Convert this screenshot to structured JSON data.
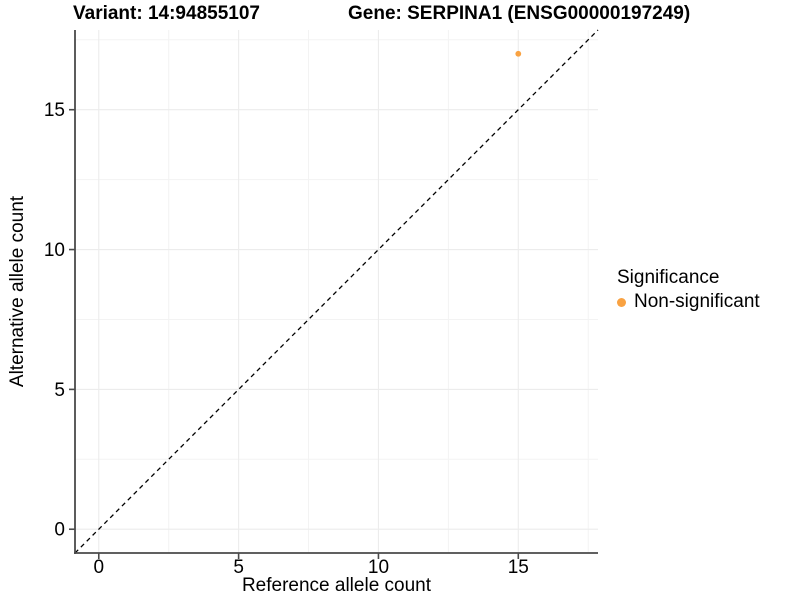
{
  "figure": {
    "title_left": "Variant: 14:94855107",
    "title_right": "Gene: SERPINA1 (ENSG00000197249)"
  },
  "chart_data": {
    "type": "scatter",
    "xlabel": "Reference allele count",
    "ylabel": "Alternative allele count",
    "xlim": [
      -0.85,
      17.85
    ],
    "ylim": [
      -0.85,
      17.85
    ],
    "x_ticks": [
      0,
      5,
      10,
      15
    ],
    "y_ticks": [
      0,
      5,
      10,
      15
    ],
    "x_minor_ticks": [
      2.5,
      7.5,
      12.5,
      17.5
    ],
    "y_minor_ticks": [
      2.5,
      7.5,
      12.5,
      17.5
    ],
    "grid": "major+minor",
    "identity_line": {
      "slope": 1,
      "intercept": 0,
      "style": "dashed",
      "color": "#000000"
    },
    "series": [
      {
        "name": "Non-significant",
        "color": "#F9A242",
        "marker": "circle",
        "points": [
          [
            15,
            17
          ]
        ]
      }
    ],
    "legend": {
      "title": "Significance",
      "position": "right",
      "items": [
        {
          "label": "Non-significant",
          "color": "#F9A242",
          "marker": "circle"
        }
      ]
    }
  },
  "style": {
    "background": "#FFFFFF",
    "axis_line_color": "#4A4A4A",
    "tick_color": "#4A4A4A",
    "grid_major_color": "#ECECEC",
    "grid_minor_color": "#F3F3F3",
    "text_color": "#000000",
    "point_color": "#F9A242"
  }
}
